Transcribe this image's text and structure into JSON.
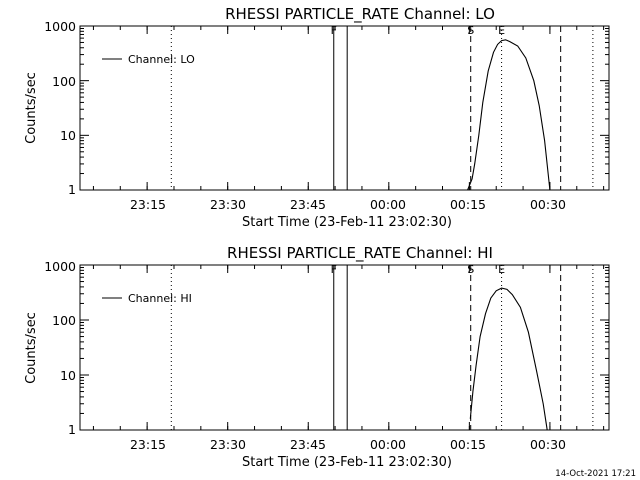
{
  "timestamp": "14-Oct-2021 17:21",
  "chart_data": [
    {
      "type": "line",
      "title": "RHESSI PARTICLE_RATE Channel: LO",
      "xlabel": "Start Time (23-Feb-11 23:02:30)",
      "ylabel": "Counts/sec",
      "yscale": "log",
      "xlim": [
        "23:02:30",
        "00:41:00"
      ],
      "ylim": [
        1,
        1000
      ],
      "x_ticks": [
        "23:15",
        "23:30",
        "23:45",
        "00:00",
        "00:15",
        "00:30"
      ],
      "y_ticks": [
        "1",
        "10",
        "100",
        "1000"
      ],
      "legend": {
        "label": "Channel: LO",
        "position": "top-left"
      },
      "markers": [
        {
          "label": "F",
          "time": "23:49:45",
          "style": "solid"
        },
        {
          "label": "",
          "time": "23:52:15",
          "style": "solid"
        },
        {
          "label": "",
          "time": "23:19:30",
          "style": "dotted"
        },
        {
          "label": "S",
          "time": "00:15:15",
          "style": "dashed"
        },
        {
          "label": "E",
          "time": "00:21:00",
          "style": "dotted"
        },
        {
          "label": "",
          "time": "00:32:00",
          "style": "dashed"
        },
        {
          "label": "",
          "time": "00:38:00",
          "style": "dotted"
        }
      ],
      "series": [
        {
          "name": "Channel: LO",
          "x": [
            "00:14:40",
            "00:15:30",
            "00:16:00",
            "00:16:45",
            "00:17:30",
            "00:18:30",
            "00:19:30",
            "00:20:15",
            "00:21:00",
            "00:21:45",
            "00:22:30",
            "00:24:00",
            "00:25:30",
            "00:27:00",
            "00:28:00",
            "00:29:00",
            "00:30:00"
          ],
          "y": [
            1.0,
            1.6,
            3.0,
            10,
            40,
            150,
            330,
            460,
            540,
            560,
            520,
            430,
            260,
            100,
            35,
            8,
            1.0
          ]
        }
      ]
    },
    {
      "type": "line",
      "title": "RHESSI PARTICLE_RATE Channel: HI",
      "xlabel": "Start Time (23-Feb-11 23:02:30)",
      "ylabel": "Counts/sec",
      "yscale": "log",
      "xlim": [
        "23:02:30",
        "00:41:00"
      ],
      "ylim": [
        1,
        1000
      ],
      "x_ticks": [
        "23:15",
        "23:30",
        "23:45",
        "00:00",
        "00:15",
        "00:30"
      ],
      "y_ticks": [
        "1",
        "10",
        "100",
        "1000"
      ],
      "legend": {
        "label": "Channel: HI",
        "position": "top-left"
      },
      "markers": [
        {
          "label": "F",
          "time": "23:49:45",
          "style": "solid"
        },
        {
          "label": "",
          "time": "23:52:15",
          "style": "solid"
        },
        {
          "label": "",
          "time": "23:19:30",
          "style": "dotted"
        },
        {
          "label": "S",
          "time": "00:15:15",
          "style": "dashed"
        },
        {
          "label": "E",
          "time": "00:21:00",
          "style": "dotted"
        },
        {
          "label": "",
          "time": "00:32:00",
          "style": "dashed"
        },
        {
          "label": "",
          "time": "00:38:00",
          "style": "dotted"
        }
      ],
      "series": [
        {
          "name": "Channel: HI",
          "x": [
            "00:15:10",
            "00:15:40",
            "00:16:15",
            "00:17:00",
            "00:18:00",
            "00:19:00",
            "00:20:00",
            "00:21:00",
            "00:22:00",
            "00:23:00",
            "00:24:30",
            "00:26:00",
            "00:27:30",
            "00:28:45",
            "00:29:30"
          ],
          "y": [
            1.6,
            5,
            15,
            50,
            130,
            250,
            340,
            380,
            360,
            290,
            170,
            60,
            12,
            3,
            1.0
          ]
        }
      ]
    }
  ]
}
